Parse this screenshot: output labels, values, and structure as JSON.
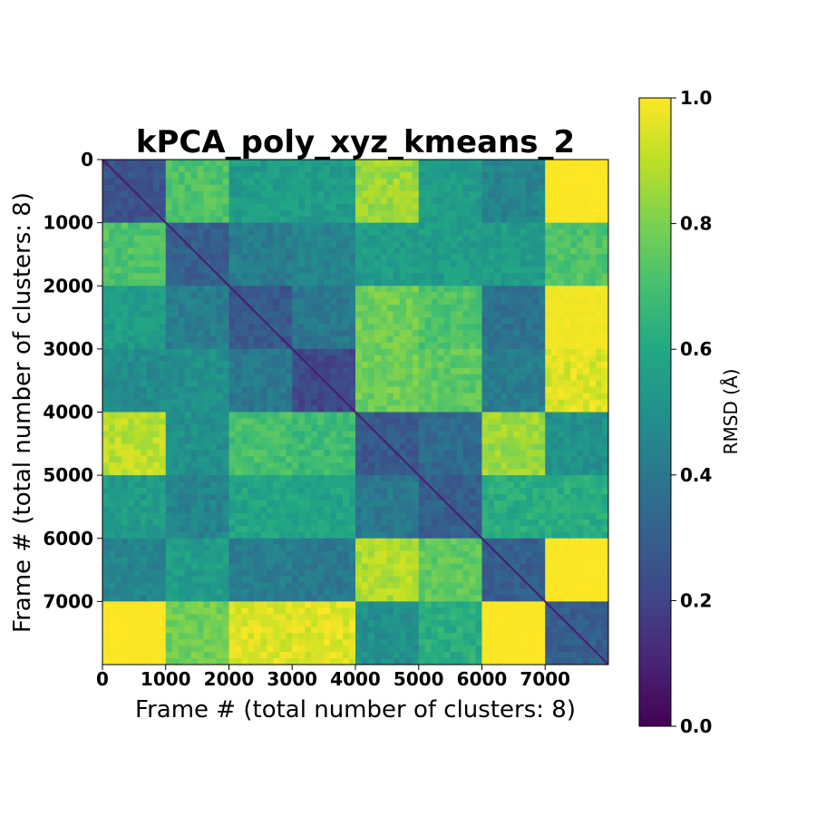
{
  "chart_data": {
    "type": "heatmap",
    "title": "kPCA_poly_xyz_kmeans_2",
    "xlabel": "Frame # (total number of clusters: 8)",
    "ylabel": "Frame # (total number of clusters: 8)",
    "xlim": [
      0,
      8000
    ],
    "ylim": [
      8000,
      0
    ],
    "x_ticks": [
      0,
      1000,
      2000,
      3000,
      4000,
      5000,
      6000,
      7000
    ],
    "x_tick_labels": [
      "0",
      "1000",
      "2000",
      "3000",
      "4000",
      "5000",
      "6000",
      "7000"
    ],
    "y_ticks": [
      0,
      1000,
      2000,
      3000,
      4000,
      5000,
      6000,
      7000
    ],
    "y_tick_labels": [
      "0",
      "1000",
      "2000",
      "3000",
      "4000",
      "5000",
      "6000",
      "7000"
    ],
    "block_boundaries": [
      0,
      1000,
      2000,
      3000,
      4000,
      5000,
      6000,
      7000,
      8000
    ],
    "block_means": [
      [
        0.25,
        0.72,
        0.55,
        0.55,
        0.85,
        0.55,
        0.45,
        1.0
      ],
      [
        0.72,
        0.3,
        0.42,
        0.45,
        0.55,
        0.55,
        0.55,
        0.72
      ],
      [
        0.55,
        0.42,
        0.28,
        0.4,
        0.78,
        0.72,
        0.38,
        0.98
      ],
      [
        0.48,
        0.5,
        0.4,
        0.22,
        0.78,
        0.75,
        0.42,
        0.95
      ],
      [
        0.9,
        0.5,
        0.7,
        0.68,
        0.28,
        0.35,
        0.85,
        0.5
      ],
      [
        0.55,
        0.45,
        0.58,
        0.58,
        0.4,
        0.3,
        0.62,
        0.62
      ],
      [
        0.45,
        0.55,
        0.42,
        0.4,
        0.88,
        0.75,
        0.3,
        1.0
      ],
      [
        1.0,
        0.78,
        0.95,
        0.95,
        0.5,
        0.62,
        1.0,
        0.3
      ]
    ],
    "colormap": "viridis",
    "colorbar": {
      "label": "RMSD (Å)",
      "range": [
        0.0,
        1.0
      ],
      "ticks": [
        0.0,
        0.2,
        0.4,
        0.6,
        0.8,
        1.0
      ],
      "tick_labels": [
        "0.0",
        "0.2",
        "0.4",
        "0.6",
        "0.8",
        "1.0"
      ]
    },
    "grid": false
  }
}
